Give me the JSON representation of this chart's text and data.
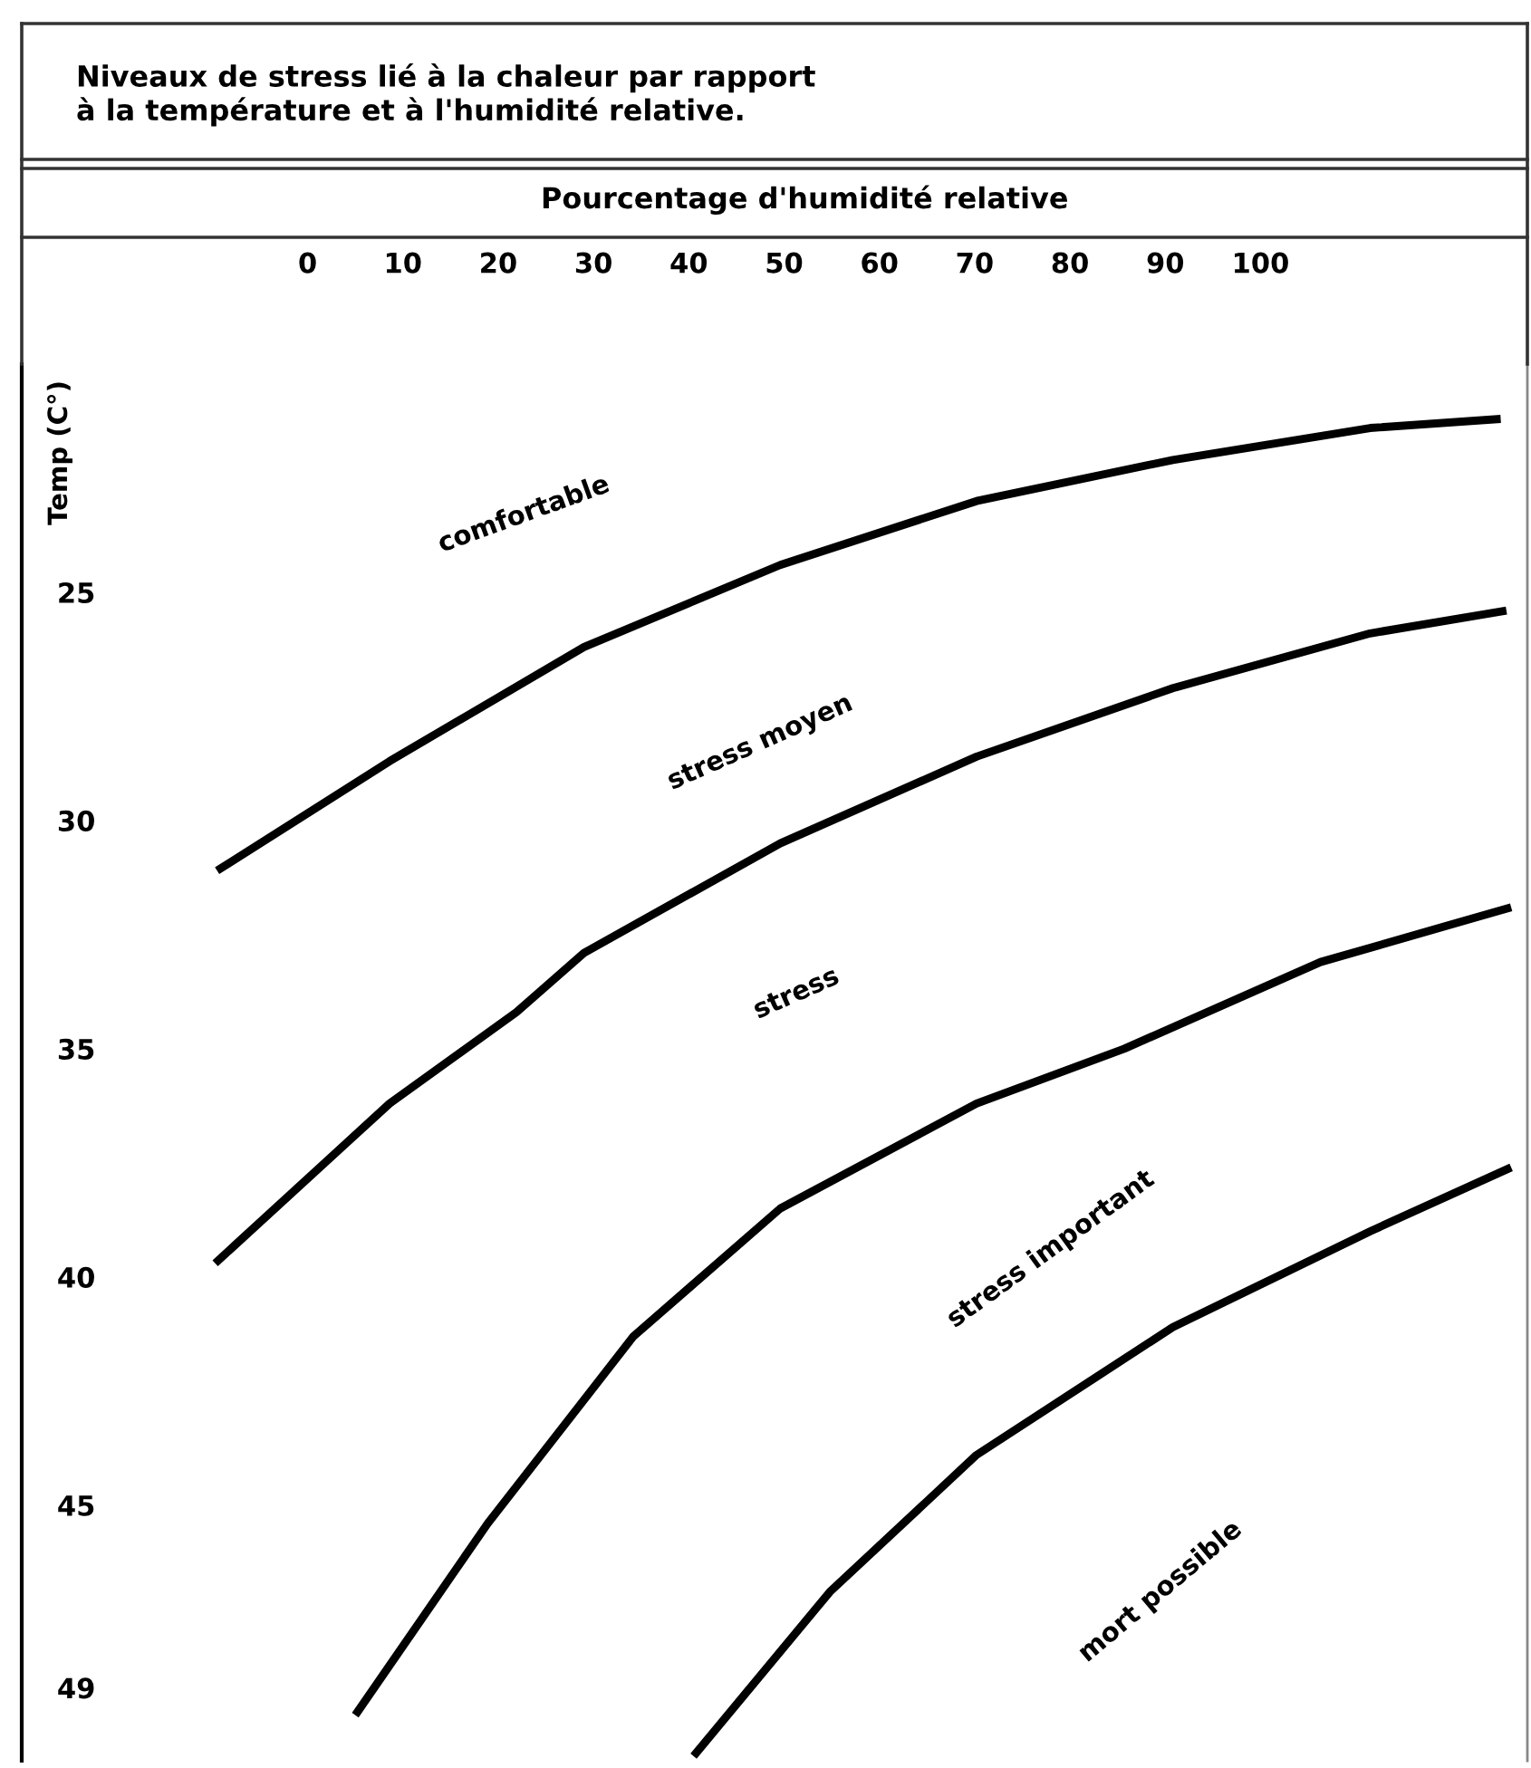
{
  "chart_data": {
    "type": "line",
    "title": "Niveaux de stress lié à la chaleur par rapport\nà la température et à l'humidité relative.",
    "xlabel": "Pourcentage d'humidité relative",
    "ylabel": "Temp (C°)",
    "xlim": [
      -30,
      128
    ],
    "ylim": [
      50.6,
      20
    ],
    "xticks": [
      0,
      10,
      20,
      30,
      40,
      50,
      60,
      70,
      80,
      90,
      100
    ],
    "yticks": [
      25,
      30,
      35,
      40,
      45,
      49
    ],
    "grid": false,
    "legend": false,
    "marker": "none",
    "line_style": "solid",
    "series": [
      {
        "color": "#000000",
        "x": [
          -9.5,
          8.6,
          29.0,
          49.6,
          70.2,
          90.8,
          111.5,
          125.2
        ],
        "values": [
          31.1,
          28.7,
          26.2,
          24.4,
          23.0,
          22.1,
          21.4,
          21.2
        ]
      },
      {
        "color": "#000000",
        "x": [
          -9.7,
          8.6,
          21.9,
          29.0,
          49.6,
          70.2,
          90.8,
          111.5,
          125.8
        ],
        "values": [
          39.7,
          36.2,
          34.2,
          32.9,
          30.5,
          28.6,
          27.1,
          25.9,
          25.4
        ]
      },
      {
        "color": "#000000",
        "x": [
          5.0,
          18.9,
          34.2,
          49.6,
          70.2,
          85.7,
          106.3,
          126.3
        ],
        "values": [
          49.6,
          45.4,
          41.3,
          38.5,
          36.2,
          35.0,
          33.1,
          31.9
        ]
      },
      {
        "color": "#000000",
        "x": [
          40.5,
          54.8,
          70.2,
          90.8,
          111.5,
          126.3
        ],
        "values": [
          50.5,
          46.9,
          43.9,
          41.1,
          39.0,
          37.6
        ]
      }
    ],
    "annotations": [
      "comfortable",
      "stress moyen",
      "stress",
      "stress important",
      "mort possible"
    ]
  }
}
